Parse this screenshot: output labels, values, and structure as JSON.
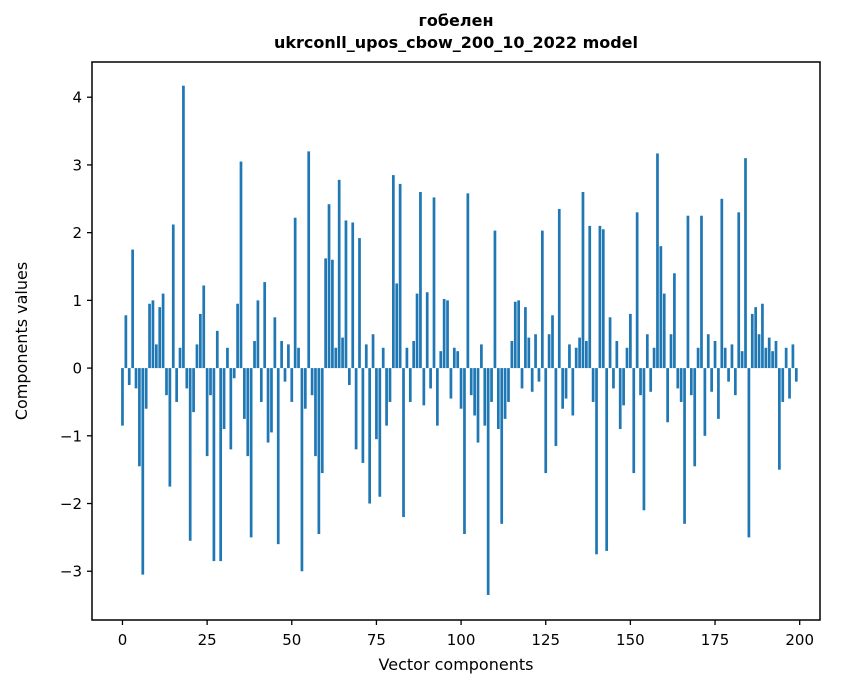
{
  "figure": {
    "background": "#ffffff"
  },
  "chart_data": {
    "type": "bar",
    "title": "гобелен",
    "subtitle": "ukrconll_upos_cbow_200_10_2022 model",
    "xlabel": "Vector components",
    "ylabel": "Components values",
    "n_components": 200,
    "bar_color": "#1f77b4",
    "bar_width": 0.8,
    "xlim": [
      -9,
      206
    ],
    "ylim": [
      -3.72,
      4.52
    ],
    "xticks": [
      0,
      25,
      50,
      75,
      100,
      125,
      150,
      175,
      200
    ],
    "yticks": [
      -3,
      -2,
      -1,
      0,
      1,
      2,
      3,
      4
    ],
    "grid": false,
    "legend": "none",
    "x_start": 0,
    "values": [
      -0.85,
      0.78,
      -0.25,
      1.75,
      -0.3,
      -1.45,
      -3.05,
      -0.6,
      0.95,
      1.0,
      0.35,
      0.9,
      1.1,
      -0.4,
      -1.75,
      2.12,
      -0.5,
      0.3,
      4.17,
      -0.3,
      -2.55,
      -0.65,
      0.35,
      0.8,
      1.22,
      -1.3,
      -0.4,
      -2.85,
      0.55,
      -2.85,
      -0.9,
      0.3,
      -1.2,
      -0.15,
      0.95,
      3.05,
      -0.75,
      -1.3,
      -2.5,
      0.4,
      1.0,
      -0.5,
      1.27,
      -1.1,
      -0.95,
      0.75,
      -2.6,
      0.4,
      -0.2,
      0.35,
      -0.5,
      2.22,
      0.3,
      -3.0,
      -0.6,
      3.2,
      -0.4,
      -1.3,
      -2.45,
      -1.55,
      1.62,
      2.42,
      1.6,
      0.3,
      2.78,
      0.45,
      2.18,
      -0.25,
      2.15,
      -1.2,
      1.92,
      -1.4,
      0.35,
      -2.0,
      0.5,
      -1.05,
      -1.9,
      0.3,
      -0.85,
      -0.5,
      2.85,
      1.25,
      2.72,
      -2.2,
      0.3,
      -0.5,
      0.4,
      1.1,
      2.6,
      -0.55,
      1.12,
      -0.3,
      2.52,
      -0.85,
      0.25,
      1.02,
      1.0,
      -0.45,
      0.3,
      0.25,
      -0.6,
      -2.45,
      2.58,
      -0.4,
      -0.7,
      -1.1,
      0.35,
      -0.85,
      -3.35,
      -0.5,
      2.03,
      -0.9,
      -2.3,
      -0.75,
      -0.5,
      0.4,
      0.98,
      1.0,
      -0.3,
      0.9,
      0.45,
      -0.35,
      0.5,
      -0.2,
      2.03,
      -1.55,
      0.5,
      0.78,
      -1.15,
      2.35,
      -0.6,
      -0.45,
      0.35,
      -0.7,
      0.3,
      0.45,
      2.6,
      0.4,
      2.1,
      -0.5,
      -2.75,
      2.1,
      2.05,
      -2.7,
      0.75,
      -0.3,
      0.4,
      -0.9,
      -0.55,
      0.3,
      0.8,
      -1.55,
      2.3,
      -0.4,
      -2.1,
      0.5,
      -0.35,
      0.3,
      3.17,
      1.8,
      1.1,
      -0.8,
      0.5,
      1.4,
      -0.3,
      -0.5,
      -2.3,
      2.25,
      -0.4,
      -1.45,
      0.3,
      2.25,
      -1.0,
      0.5,
      -0.35,
      0.4,
      -0.75,
      2.5,
      0.3,
      -0.2,
      0.35,
      -0.4,
      2.3,
      0.25,
      3.1,
      -2.5,
      0.8,
      0.9,
      0.5,
      0.95,
      0.3,
      0.45,
      0.25,
      0.4,
      -1.5,
      -0.5,
      0.3,
      -0.45,
      0.35,
      -0.2
    ]
  }
}
